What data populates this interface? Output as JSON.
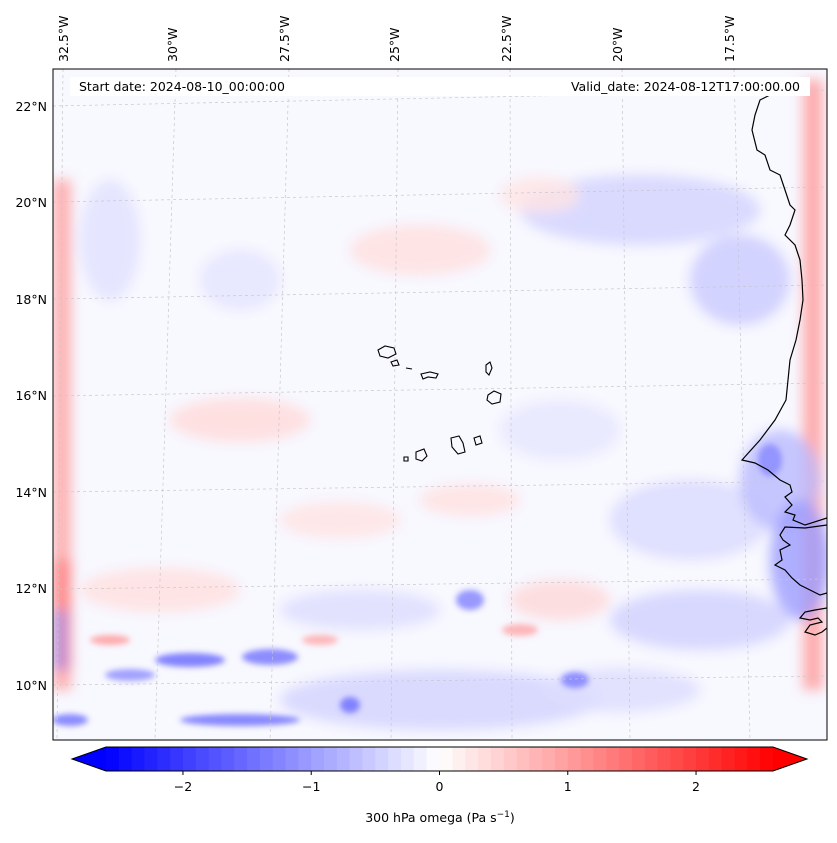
{
  "map": {
    "start_date_label": "Start date: 2024-08-10_00:00:00",
    "valid_date_label": "Valid_date: 2024-08-12T17:00:00.00",
    "longitude_labels": [
      "32.5°W",
      "30°W",
      "27.5°W",
      "25°W",
      "22.5°W",
      "20°W",
      "17.5°W"
    ],
    "latitude_labels": [
      "22°N",
      "20°N",
      "18°N",
      "16°N",
      "14°N",
      "12°N",
      "10°N"
    ],
    "colorbar": {
      "label_main": "300 hPa omega (Pa s",
      "label_exp": "−1",
      "label_close": ")",
      "ticks": [
        "−2",
        "−1",
        "0",
        "1",
        "2"
      ],
      "tick_values": [
        -2,
        -1,
        0,
        1,
        2
      ],
      "vmin": -2.6,
      "vmax": 2.6,
      "levels": 52
    },
    "colors": {
      "negative": "#0000ff",
      "neutral": "#ffffff",
      "positive": "#ff0000",
      "coastline": "#000000",
      "gridline": "#c8c8c8"
    }
  }
}
